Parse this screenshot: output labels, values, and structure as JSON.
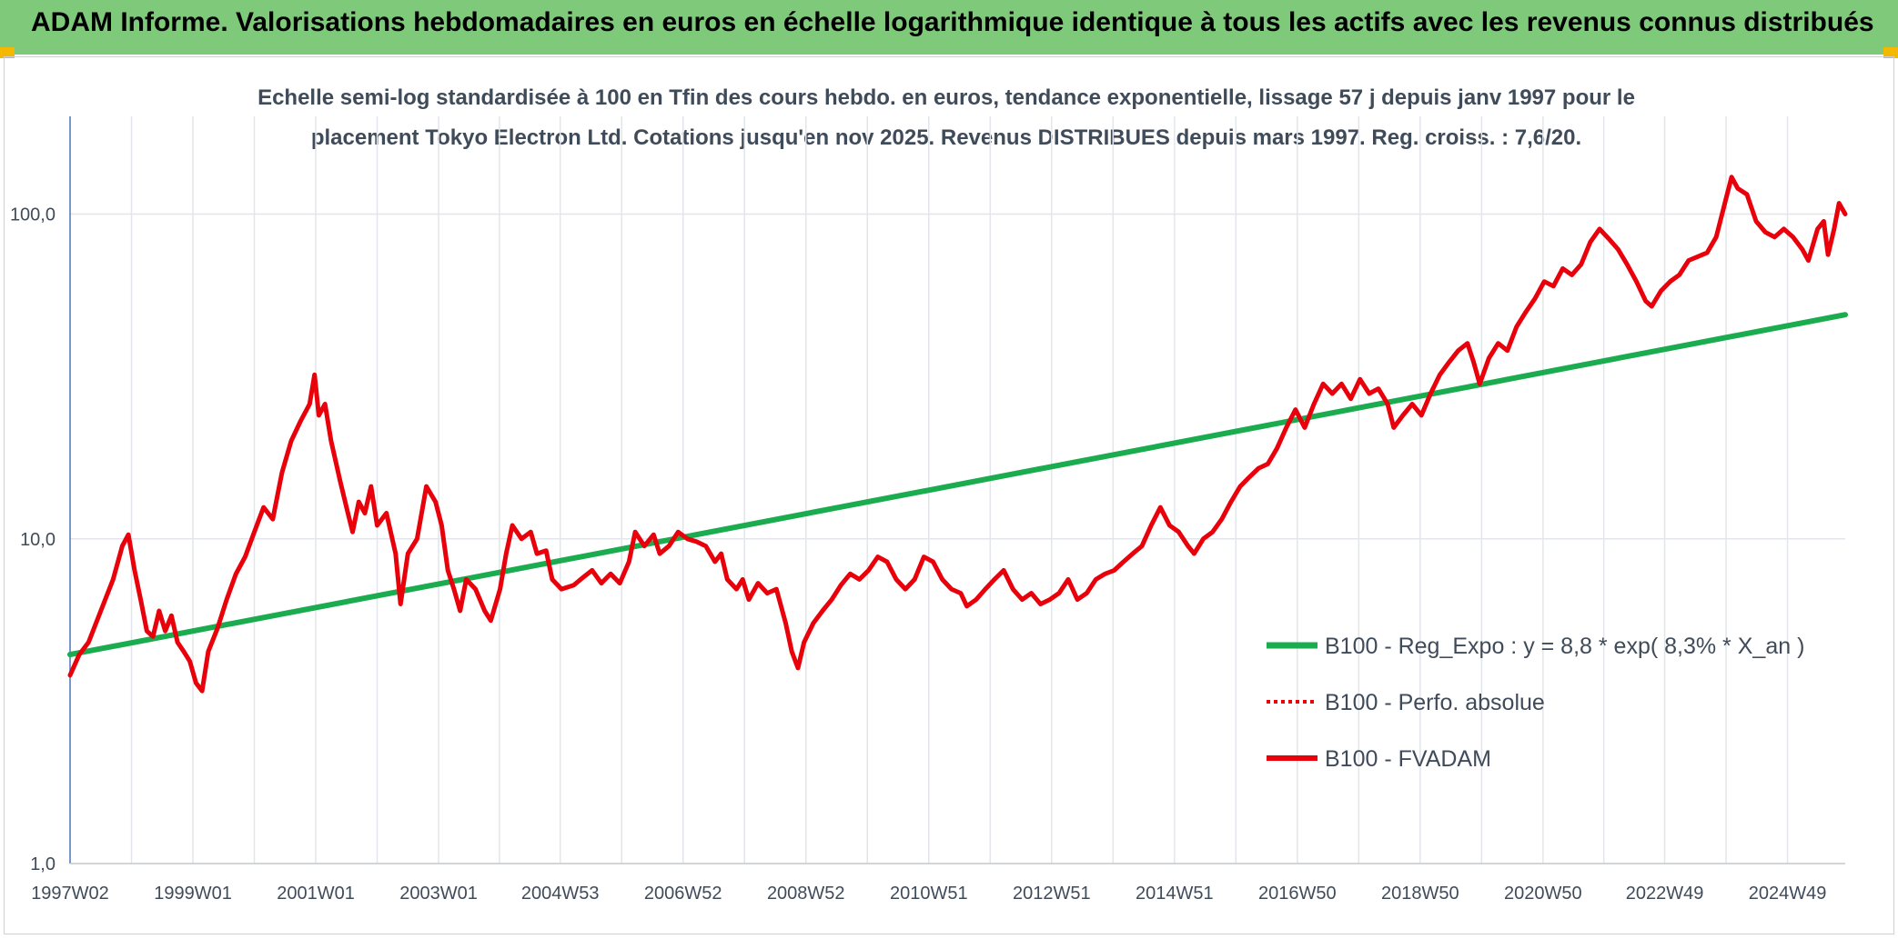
{
  "header": {
    "title": "ADAM Informe. Valorisations hebdomadaires en euros en échelle logarithmique identique à tous les actifs avec les revenus connus distribués"
  },
  "colors": {
    "header_bg": "#7ec97a",
    "corner_accent": "#f5b800",
    "regression": "#1aac4e",
    "fvadam": "#e8000b",
    "perfo": "#e8000b"
  },
  "chart_data": {
    "type": "line",
    "title_line1": "Echelle semi-log standardisée à 100 en Tfin des cours hebdo. en euros, tendance exponentielle, lissage 57 j depuis janv 1997 pour le",
    "title_line2": "placement Tokyo Electron Ltd. Cotations jusqu'en nov 2025. Revenus DISTRIBUES depuis mars 1997. Reg. croiss. : 7,6/20.",
    "y_scale": "log",
    "ylim": [
      1,
      200
    ],
    "y_ticks": [
      {
        "value": 1,
        "label": "1,0"
      },
      {
        "value": 10,
        "label": "10,0"
      },
      {
        "value": 100,
        "label": "100,0"
      }
    ],
    "xlim": [
      1997.0,
      2025.9
    ],
    "x_ticks": [
      {
        "value": 1997.0,
        "label": "1997W02"
      },
      {
        "value": 1999.0,
        "label": "1999W01"
      },
      {
        "value": 2001.0,
        "label": "2001W01"
      },
      {
        "value": 2003.0,
        "label": "2003W01"
      },
      {
        "value": 2004.98,
        "label": "2004W53"
      },
      {
        "value": 2006.98,
        "label": "2006W52"
      },
      {
        "value": 2008.98,
        "label": "2008W52"
      },
      {
        "value": 2010.98,
        "label": "2010W51"
      },
      {
        "value": 2012.98,
        "label": "2012W51"
      },
      {
        "value": 2014.98,
        "label": "2014W51"
      },
      {
        "value": 2016.98,
        "label": "2016W50"
      },
      {
        "value": 2018.98,
        "label": "2018W50"
      },
      {
        "value": 2020.98,
        "label": "2020W50"
      },
      {
        "value": 2022.96,
        "label": "2022W49"
      },
      {
        "value": 2024.96,
        "label": "2024W49"
      }
    ],
    "grid": "vertical and horizontal",
    "legend_position": "right",
    "series": [
      {
        "name": "B100 - Reg_Expo : y = 8,8 * exp( 8,3% *  X_an )",
        "style": "solid-green",
        "points": [
          [
            1997.0,
            4.4
          ],
          [
            2025.9,
            49.0
          ]
        ]
      },
      {
        "name": "B100 - Perfo. absolue",
        "style": "dotted-red",
        "points": []
      },
      {
        "name": "B100 - FVADAM",
        "style": "solid-red",
        "points": [
          [
            1997.0,
            3.8
          ],
          [
            1997.15,
            4.4
          ],
          [
            1997.3,
            4.8
          ],
          [
            1997.5,
            6.0
          ],
          [
            1997.7,
            7.5
          ],
          [
            1997.85,
            9.5
          ],
          [
            1997.95,
            10.3
          ],
          [
            1998.05,
            8.0
          ],
          [
            1998.15,
            6.5
          ],
          [
            1998.25,
            5.2
          ],
          [
            1998.35,
            5.0
          ],
          [
            1998.45,
            6.0
          ],
          [
            1998.55,
            5.2
          ],
          [
            1998.65,
            5.8
          ],
          [
            1998.75,
            4.8
          ],
          [
            1998.85,
            4.5
          ],
          [
            1998.95,
            4.2
          ],
          [
            1999.05,
            3.6
          ],
          [
            1999.15,
            3.4
          ],
          [
            1999.25,
            4.5
          ],
          [
            1999.4,
            5.3
          ],
          [
            1999.55,
            6.5
          ],
          [
            1999.7,
            7.8
          ],
          [
            1999.85,
            8.8
          ],
          [
            2000.0,
            10.5
          ],
          [
            2000.15,
            12.5
          ],
          [
            2000.3,
            11.5
          ],
          [
            2000.45,
            16.0
          ],
          [
            2000.6,
            20.0
          ],
          [
            2000.75,
            23.0
          ],
          [
            2000.9,
            26.0
          ],
          [
            2000.98,
            32.0
          ],
          [
            2001.05,
            24.0
          ],
          [
            2001.15,
            26.0
          ],
          [
            2001.25,
            20.0
          ],
          [
            2001.4,
            15.0
          ],
          [
            2001.5,
            12.5
          ],
          [
            2001.6,
            10.5
          ],
          [
            2001.7,
            13.0
          ],
          [
            2001.8,
            12.0
          ],
          [
            2001.9,
            14.5
          ],
          [
            2002.0,
            11.0
          ],
          [
            2002.15,
            12.0
          ],
          [
            2002.3,
            9.0
          ],
          [
            2002.38,
            6.3
          ],
          [
            2002.5,
            9.0
          ],
          [
            2002.65,
            10.0
          ],
          [
            2002.8,
            14.5
          ],
          [
            2002.95,
            13.0
          ],
          [
            2003.05,
            11.0
          ],
          [
            2003.15,
            8.0
          ],
          [
            2003.25,
            7.0
          ],
          [
            2003.35,
            6.0
          ],
          [
            2003.45,
            7.5
          ],
          [
            2003.6,
            7.0
          ],
          [
            2003.75,
            6.0
          ],
          [
            2003.85,
            5.6
          ],
          [
            2004.0,
            7.0
          ],
          [
            2004.1,
            9.0
          ],
          [
            2004.2,
            11.0
          ],
          [
            2004.35,
            10.0
          ],
          [
            2004.5,
            10.5
          ],
          [
            2004.6,
            9.0
          ],
          [
            2004.75,
            9.2
          ],
          [
            2004.85,
            7.5
          ],
          [
            2005.0,
            7.0
          ],
          [
            2005.2,
            7.2
          ],
          [
            2005.35,
            7.6
          ],
          [
            2005.5,
            8.0
          ],
          [
            2005.65,
            7.3
          ],
          [
            2005.8,
            7.8
          ],
          [
            2005.95,
            7.3
          ],
          [
            2006.1,
            8.5
          ],
          [
            2006.2,
            10.5
          ],
          [
            2006.35,
            9.5
          ],
          [
            2006.5,
            10.3
          ],
          [
            2006.6,
            9.0
          ],
          [
            2006.75,
            9.5
          ],
          [
            2006.9,
            10.5
          ],
          [
            2007.05,
            10.0
          ],
          [
            2007.2,
            9.8
          ],
          [
            2007.35,
            9.5
          ],
          [
            2007.5,
            8.5
          ],
          [
            2007.6,
            9.0
          ],
          [
            2007.7,
            7.5
          ],
          [
            2007.85,
            7.0
          ],
          [
            2007.95,
            7.5
          ],
          [
            2008.05,
            6.5
          ],
          [
            2008.2,
            7.3
          ],
          [
            2008.35,
            6.8
          ],
          [
            2008.5,
            7.0
          ],
          [
            2008.65,
            5.5
          ],
          [
            2008.75,
            4.5
          ],
          [
            2008.85,
            4.0
          ],
          [
            2008.95,
            4.8
          ],
          [
            2009.1,
            5.5
          ],
          [
            2009.25,
            6.0
          ],
          [
            2009.4,
            6.5
          ],
          [
            2009.55,
            7.2
          ],
          [
            2009.7,
            7.8
          ],
          [
            2009.85,
            7.5
          ],
          [
            2010.0,
            8.0
          ],
          [
            2010.15,
            8.8
          ],
          [
            2010.3,
            8.5
          ],
          [
            2010.45,
            7.5
          ],
          [
            2010.6,
            7.0
          ],
          [
            2010.75,
            7.5
          ],
          [
            2010.9,
            8.8
          ],
          [
            2011.05,
            8.5
          ],
          [
            2011.2,
            7.5
          ],
          [
            2011.35,
            7.0
          ],
          [
            2011.5,
            6.8
          ],
          [
            2011.6,
            6.2
          ],
          [
            2011.75,
            6.5
          ],
          [
            2011.9,
            7.0
          ],
          [
            2012.05,
            7.5
          ],
          [
            2012.2,
            8.0
          ],
          [
            2012.35,
            7.0
          ],
          [
            2012.5,
            6.5
          ],
          [
            2012.65,
            6.8
          ],
          [
            2012.8,
            6.3
          ],
          [
            2012.95,
            6.5
          ],
          [
            2013.1,
            6.8
          ],
          [
            2013.25,
            7.5
          ],
          [
            2013.4,
            6.5
          ],
          [
            2013.55,
            6.8
          ],
          [
            2013.7,
            7.5
          ],
          [
            2013.85,
            7.8
          ],
          [
            2014.0,
            8.0
          ],
          [
            2014.15,
            8.5
          ],
          [
            2014.3,
            9.0
          ],
          [
            2014.45,
            9.5
          ],
          [
            2014.6,
            11.0
          ],
          [
            2014.75,
            12.5
          ],
          [
            2014.9,
            11.0
          ],
          [
            2015.05,
            10.5
          ],
          [
            2015.2,
            9.5
          ],
          [
            2015.3,
            9.0
          ],
          [
            2015.45,
            10.0
          ],
          [
            2015.6,
            10.5
          ],
          [
            2015.75,
            11.5
          ],
          [
            2015.9,
            13.0
          ],
          [
            2016.05,
            14.5
          ],
          [
            2016.2,
            15.5
          ],
          [
            2016.35,
            16.5
          ],
          [
            2016.5,
            17.0
          ],
          [
            2016.65,
            19.0
          ],
          [
            2016.8,
            22.0
          ],
          [
            2016.95,
            25.0
          ],
          [
            2017.1,
            22.0
          ],
          [
            2017.25,
            26.0
          ],
          [
            2017.4,
            30.0
          ],
          [
            2017.55,
            28.0
          ],
          [
            2017.7,
            30.0
          ],
          [
            2017.85,
            27.0
          ],
          [
            2018.0,
            31.0
          ],
          [
            2018.15,
            28.0
          ],
          [
            2018.3,
            29.0
          ],
          [
            2018.45,
            26.0
          ],
          [
            2018.55,
            22.0
          ],
          [
            2018.7,
            24.0
          ],
          [
            2018.85,
            26.0
          ],
          [
            2019.0,
            24.0
          ],
          [
            2019.15,
            28.0
          ],
          [
            2019.3,
            32.0
          ],
          [
            2019.45,
            35.0
          ],
          [
            2019.6,
            38.0
          ],
          [
            2019.75,
            40.0
          ],
          [
            2019.85,
            35.0
          ],
          [
            2019.95,
            30.0
          ],
          [
            2020.1,
            36.0
          ],
          [
            2020.25,
            40.0
          ],
          [
            2020.4,
            38.0
          ],
          [
            2020.55,
            45.0
          ],
          [
            2020.7,
            50.0
          ],
          [
            2020.85,
            55.0
          ],
          [
            2021.0,
            62.0
          ],
          [
            2021.15,
            60.0
          ],
          [
            2021.3,
            68.0
          ],
          [
            2021.45,
            65.0
          ],
          [
            2021.6,
            70.0
          ],
          [
            2021.75,
            82.0
          ],
          [
            2021.9,
            90.0
          ],
          [
            2022.05,
            84.0
          ],
          [
            2022.2,
            78.0
          ],
          [
            2022.35,
            70.0
          ],
          [
            2022.5,
            62.0
          ],
          [
            2022.65,
            54.0
          ],
          [
            2022.75,
            52.0
          ],
          [
            2022.9,
            58.0
          ],
          [
            2023.05,
            62.0
          ],
          [
            2023.2,
            65.0
          ],
          [
            2023.35,
            72.0
          ],
          [
            2023.5,
            74.0
          ],
          [
            2023.65,
            76.0
          ],
          [
            2023.8,
            85.0
          ],
          [
            2023.95,
            110.0
          ],
          [
            2024.05,
            130.0
          ],
          [
            2024.15,
            120.0
          ],
          [
            2024.3,
            115.0
          ],
          [
            2024.45,
            95.0
          ],
          [
            2024.6,
            88.0
          ],
          [
            2024.75,
            85.0
          ],
          [
            2024.9,
            90.0
          ],
          [
            2025.05,
            85.0
          ],
          [
            2025.2,
            78.0
          ],
          [
            2025.3,
            72.0
          ],
          [
            2025.45,
            90.0
          ],
          [
            2025.55,
            95.0
          ],
          [
            2025.62,
            75.0
          ],
          [
            2025.72,
            90.0
          ],
          [
            2025.8,
            108.0
          ],
          [
            2025.9,
            100.0
          ]
        ]
      }
    ]
  }
}
